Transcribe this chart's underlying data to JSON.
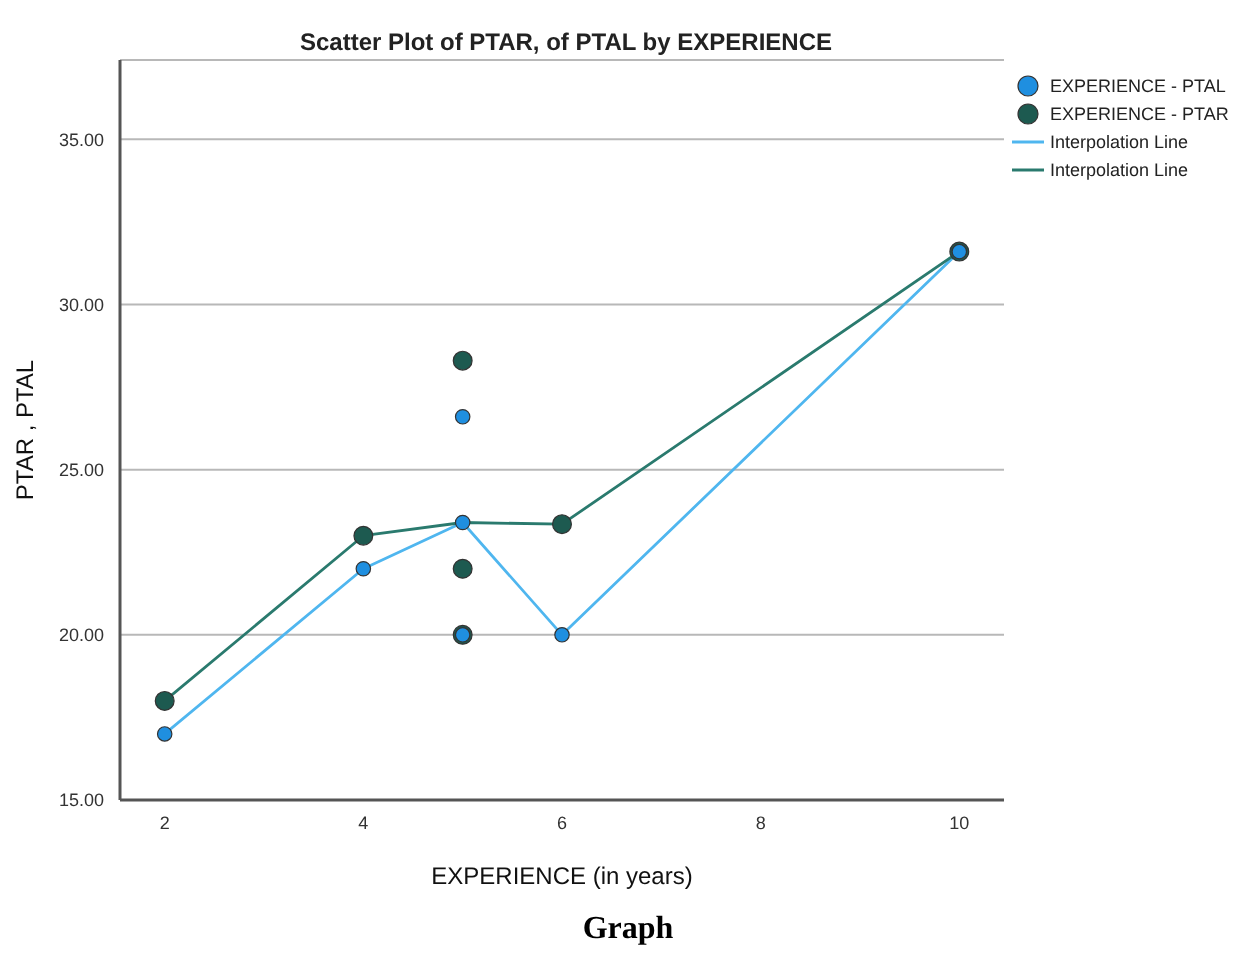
{
  "chart_data": {
    "type": "scatter",
    "title": "Scatter Plot of PTAR,  of PTAL by EXPERIENCE",
    "xlabel": "EXPERIENCE (in years)",
    "ylabel": "PTAR , PTAL",
    "annotations": [
      "Graph"
    ],
    "xlim": [
      1.55,
      10.45
    ],
    "xticks": [
      2,
      4,
      6,
      8,
      10
    ],
    "ylim": [
      15,
      37.4
    ],
    "yticks": [
      {
        "value": 15,
        "label": "15.00"
      },
      {
        "value": 20,
        "label": "20.00"
      },
      {
        "value": 25,
        "label": "25.00"
      },
      {
        "value": 30,
        "label": "30.00"
      },
      {
        "value": 35,
        "label": "35.00"
      }
    ],
    "grid": "y",
    "legend": "top right",
    "marker": "circle",
    "series": [
      {
        "name": "EXPERIENCE - PTAL",
        "color": "#1f8fe0",
        "x": [
          2,
          4,
          5,
          5,
          5,
          6,
          10
        ],
        "values": [
          17,
          22,
          26.6,
          23.4,
          20,
          20,
          31.6
        ]
      },
      {
        "name": "EXPERIENCE - PTAR",
        "color": "#1d5a50",
        "x": [
          2,
          4,
          5,
          5,
          5,
          6,
          10
        ],
        "values": [
          18,
          23,
          28.3,
          22,
          20,
          23.35,
          31.6
        ]
      },
      {
        "name": "Interpolation Line",
        "type": "line",
        "color": "#4fb6ef",
        "marker": "none",
        "x": [
          2,
          4,
          5,
          6,
          10
        ],
        "values": [
          17,
          22,
          23.4,
          20,
          31.6
        ]
      },
      {
        "name": "Interpolation Line",
        "type": "line",
        "color": "#2a7a6e",
        "marker": "none",
        "x": [
          2,
          4,
          5,
          6,
          10
        ],
        "values": [
          18,
          23,
          23.4,
          23.35,
          31.6
        ]
      }
    ]
  }
}
